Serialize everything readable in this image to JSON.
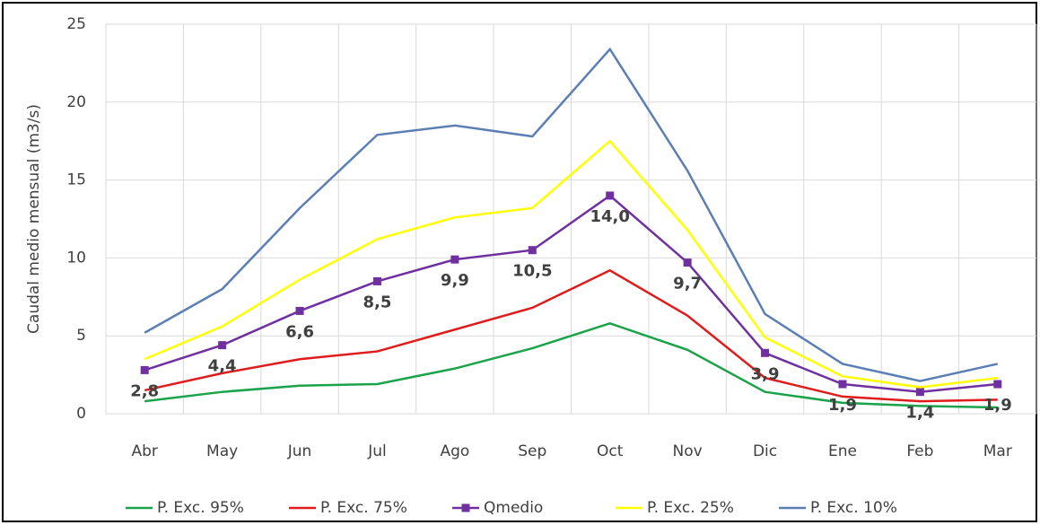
{
  "chart_data": {
    "type": "line",
    "y_label": "Caudal medio mensual (m3/s)",
    "categories": [
      "Abr",
      "May",
      "Jun",
      "Jul",
      "Ago",
      "Sep",
      "Oct",
      "Nov",
      "Dic",
      "Ene",
      "Feb",
      "Mar"
    ],
    "ylim": [
      0,
      25
    ],
    "yticks": [
      0,
      5,
      10,
      15,
      20,
      25
    ],
    "grid": true,
    "legend": "bottom",
    "series": [
      {
        "name": "P. Exc. 95%",
        "color": "#1aa34a",
        "values": [
          0.8,
          1.4,
          1.8,
          1.9,
          2.9,
          4.2,
          5.8,
          4.1,
          1.4,
          0.7,
          0.5,
          0.4
        ]
      },
      {
        "name": "P. Exc. 75%",
        "color": "#e01b1b",
        "values": [
          1.5,
          2.6,
          3.5,
          4.0,
          5.4,
          6.8,
          9.2,
          6.3,
          2.3,
          1.1,
          0.8,
          0.9
        ]
      },
      {
        "name": "Qmedio",
        "color": "#7030a0",
        "marker": "square",
        "values": [
          2.8,
          4.4,
          6.6,
          8.5,
          9.9,
          10.5,
          14.0,
          9.7,
          3.9,
          1.9,
          1.4,
          1.9
        ],
        "value_labels": [
          "2,8",
          "4,4",
          "6,6",
          "8,5",
          "9,9",
          "10,5",
          "14,0",
          "9,7",
          "3,9",
          "1,9",
          "1,4",
          "1,9"
        ]
      },
      {
        "name": "P. Exc. 25%",
        "color": "#ffff00",
        "values": [
          3.5,
          5.6,
          8.6,
          11.2,
          12.6,
          13.2,
          17.5,
          11.8,
          4.9,
          2.4,
          1.7,
          2.3
        ]
      },
      {
        "name": "P. Exc. 10%",
        "color": "#5b7fb5",
        "values": [
          5.2,
          8.0,
          13.2,
          17.9,
          18.5,
          17.8,
          23.4,
          15.6,
          6.4,
          3.2,
          2.1,
          3.2
        ]
      }
    ]
  }
}
